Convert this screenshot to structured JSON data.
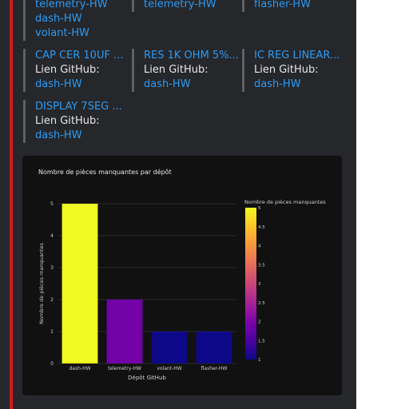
{
  "cards": [
    {
      "links": [
        "telemetry-HW",
        "dash-HW",
        "volant-HW"
      ]
    },
    {
      "links": [
        "telemetry-HW"
      ]
    },
    {
      "links": [
        "flasher-HW"
      ]
    },
    {
      "title": "CAP CER 10UF ...",
      "label": "Lien GitHub:",
      "links": [
        "dash-HW"
      ]
    },
    {
      "title": "RES 1K OHM 5%...",
      "label": "Lien GitHub:",
      "links": [
        "dash-HW"
      ]
    },
    {
      "title": "IC REG LINEAR...",
      "label": "Lien GitHub:",
      "links": [
        "dash-HW"
      ]
    },
    {
      "title": "DISPLAY 7SEG ...",
      "label": "Lien GitHub:",
      "links": [
        "dash-HW"
      ]
    }
  ],
  "chart_data": {
    "type": "bar",
    "title": "Nombre de pièces manquantes par dépôt",
    "xlabel": "Dépôt GitHub",
    "ylabel": "Nombre de pièces manquantes",
    "categories": [
      "dash-HW",
      "telemetry-HW",
      "volant-HW",
      "flasher-HW"
    ],
    "values": [
      5,
      2,
      1,
      1
    ],
    "ylim": [
      0,
      5
    ],
    "yticks": [
      "0",
      "1",
      "2",
      "3",
      "4",
      "5"
    ],
    "grid": true,
    "colorscale": {
      "title": "Nombre de pièces manquantes",
      "range": [
        1,
        5
      ],
      "ticks": [
        "1",
        "1.5",
        "2",
        "2.5",
        "3",
        "3.5",
        "4",
        "4.5",
        "5"
      ],
      "colors": [
        "#0d0887",
        "#46039f",
        "#7201a8",
        "#9c179e",
        "#bd3786",
        "#d8576b",
        "#ed7953",
        "#fb9f3a",
        "#fdca26",
        "#f0f921"
      ]
    }
  }
}
